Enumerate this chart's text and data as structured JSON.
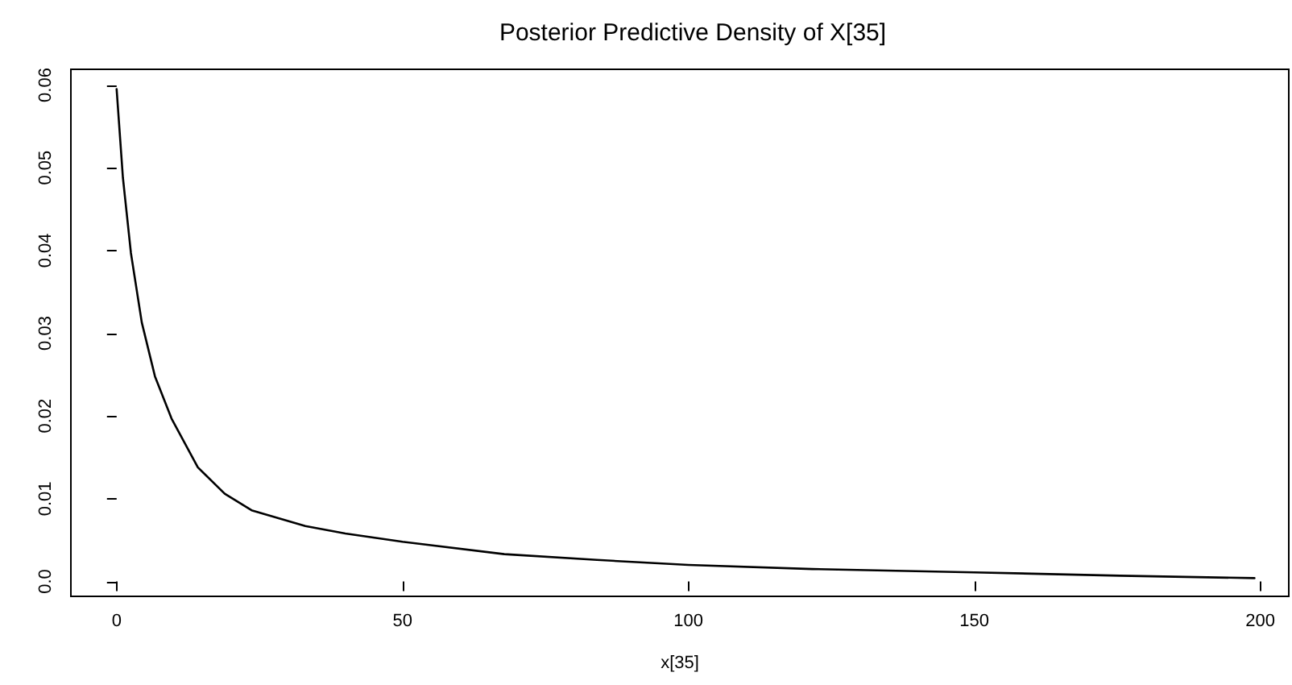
{
  "chart_data": {
    "type": "line",
    "title": "Posterior Predictive Density of X[35]",
    "xlabel": "x[35]",
    "x": [
      0,
      1.1,
      2.5,
      4.4,
      6.7,
      9.6,
      14.2,
      18.9,
      23.6,
      33,
      40,
      50,
      67.8,
      84,
      100,
      121.7,
      150,
      175.5,
      199
    ],
    "series": [
      {
        "color": "#000000",
        "values": [
          0.0595,
          0.0488,
          0.0397,
          0.0313,
          0.0248,
          0.0197,
          0.0138,
          0.0106,
          0.0086,
          0.0067,
          0.0058,
          0.0048,
          0.0033,
          0.0026,
          0.002,
          0.0015,
          0.0011,
          0.0007,
          0.0004
        ]
      }
    ],
    "xlim": [
      -8,
      205
    ],
    "xticks": [
      0,
      50,
      100,
      150,
      200
    ],
    "ylim": [
      -0.0018,
      0.0619
    ],
    "yticks": [
      {
        "value": 0,
        "label": "0.0"
      },
      0.01,
      0.02,
      0.03,
      0.04,
      0.05,
      0.06
    ]
  }
}
